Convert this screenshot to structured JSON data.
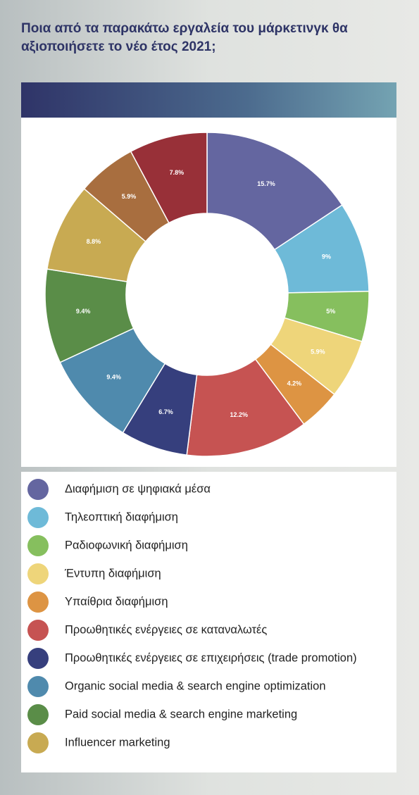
{
  "chart_data": {
    "type": "donut",
    "title": "Ποια από τα παρακάτω εργαλεία του μάρκετινγκ θα αξιοποιήσετε το νέο έτος 2021;",
    "categories": [
      "Διαφήμιση σε ψηφιακά μέσα",
      "Τηλεοπτική διαφήμιση",
      "Ραδιοφωνική διαφήμιση",
      "Έντυπη διαφήμιση",
      "Υπαίθρια διαφήμιση",
      "Προωθητικές ενέργειες σε καταναλωτές",
      "Προωθητικές ενέργειες σε επιχειρήσεις (trade promotion)",
      "Organic social media & search engine optimization",
      "Paid social media & search engine marketing",
      "Influencer marketing",
      null,
      null
    ],
    "values": [
      15.7,
      9,
      5,
      5.9,
      4.2,
      12.2,
      6.7,
      9.4,
      9.4,
      8.8,
      5.9,
      7.8
    ],
    "value_labels": [
      "15.7%",
      "9%",
      "5%",
      "5.9%",
      "4.2%",
      "12.2%",
      "6.7%",
      "9.4%",
      "9.4%",
      "8.8%",
      "5.9%",
      "7.8%"
    ],
    "colors": [
      "#6466a0",
      "#6ebad8",
      "#86bf5e",
      "#eed57a",
      "#dd9443",
      "#c65352",
      "#363f7d",
      "#4f8aad",
      "#5a8d48",
      "#c8aa52",
      "#a86e3f",
      "#983038"
    ]
  }
}
